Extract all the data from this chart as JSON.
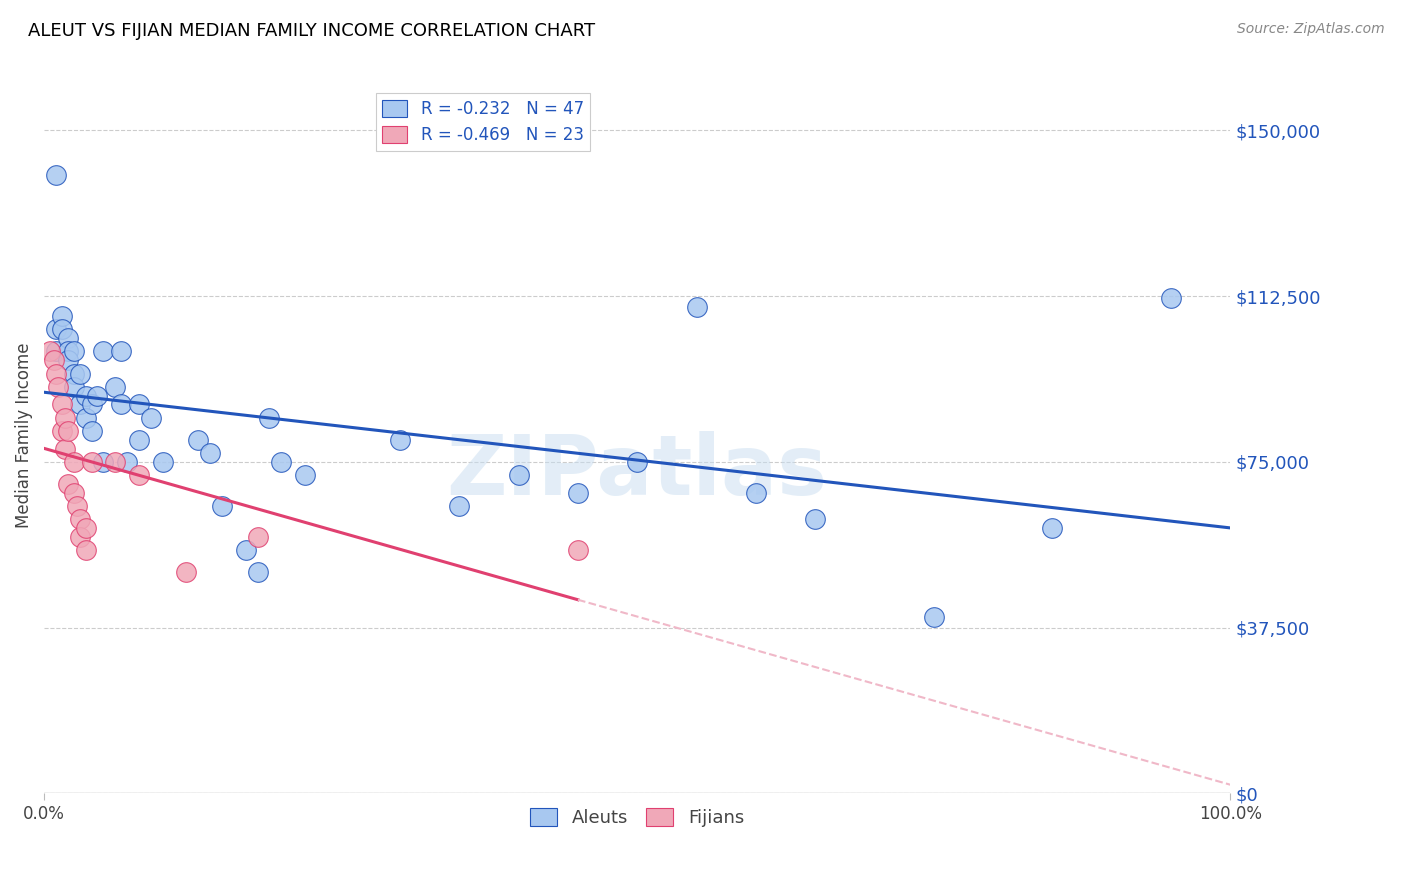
{
  "title": "ALEUT VS FIJIAN MEDIAN FAMILY INCOME CORRELATION CHART",
  "source": "Source: ZipAtlas.com",
  "ylabel": "Median Family Income",
  "watermark": "ZIPatlas",
  "aleuts_R": -0.232,
  "aleuts_N": 47,
  "fijians_R": -0.469,
  "fijians_N": 23,
  "aleut_color": "#a8c8f0",
  "fijian_color": "#f0a8b8",
  "aleut_line_color": "#2255bb",
  "fijian_line_color": "#e04070",
  "fijian_line_ext_color": "#f0b8c8",
  "ytick_labels": [
    "$0",
    "$37,500",
    "$75,000",
    "$112,500",
    "$150,000"
  ],
  "ytick_values": [
    0,
    37500,
    75000,
    112500,
    150000
  ],
  "ymin": 0,
  "ymax": 162000,
  "xmin": 0.0,
  "xmax": 1.0,
  "xtick_labels": [
    "0.0%",
    "100.0%"
  ],
  "background_color": "#ffffff",
  "grid_color": "#cccccc",
  "title_color": "#000000",
  "right_label_color": "#2255bb",
  "aleuts_x": [
    0.01,
    0.01,
    0.01,
    0.015,
    0.015,
    0.02,
    0.02,
    0.02,
    0.025,
    0.025,
    0.025,
    0.03,
    0.03,
    0.035,
    0.035,
    0.04,
    0.04,
    0.045,
    0.05,
    0.05,
    0.06,
    0.065,
    0.065,
    0.07,
    0.08,
    0.08,
    0.09,
    0.1,
    0.13,
    0.14,
    0.15,
    0.17,
    0.18,
    0.19,
    0.2,
    0.22,
    0.3,
    0.35,
    0.4,
    0.45,
    0.5,
    0.55,
    0.6,
    0.65,
    0.75,
    0.85,
    0.95
  ],
  "aleuts_y": [
    140000,
    105000,
    100000,
    108000,
    105000,
    103000,
    100000,
    98000,
    100000,
    95000,
    92000,
    95000,
    88000,
    90000,
    85000,
    88000,
    82000,
    90000,
    100000,
    75000,
    92000,
    100000,
    88000,
    75000,
    88000,
    80000,
    85000,
    75000,
    80000,
    77000,
    65000,
    55000,
    50000,
    85000,
    75000,
    72000,
    80000,
    65000,
    72000,
    68000,
    75000,
    110000,
    68000,
    62000,
    40000,
    60000,
    112000
  ],
  "fijians_x": [
    0.005,
    0.008,
    0.01,
    0.012,
    0.015,
    0.015,
    0.018,
    0.018,
    0.02,
    0.02,
    0.025,
    0.025,
    0.028,
    0.03,
    0.03,
    0.035,
    0.035,
    0.04,
    0.06,
    0.08,
    0.12,
    0.18,
    0.45
  ],
  "fijians_y": [
    100000,
    98000,
    95000,
    92000,
    88000,
    82000,
    85000,
    78000,
    82000,
    70000,
    75000,
    68000,
    65000,
    62000,
    58000,
    60000,
    55000,
    75000,
    75000,
    72000,
    50000,
    58000,
    55000
  ]
}
